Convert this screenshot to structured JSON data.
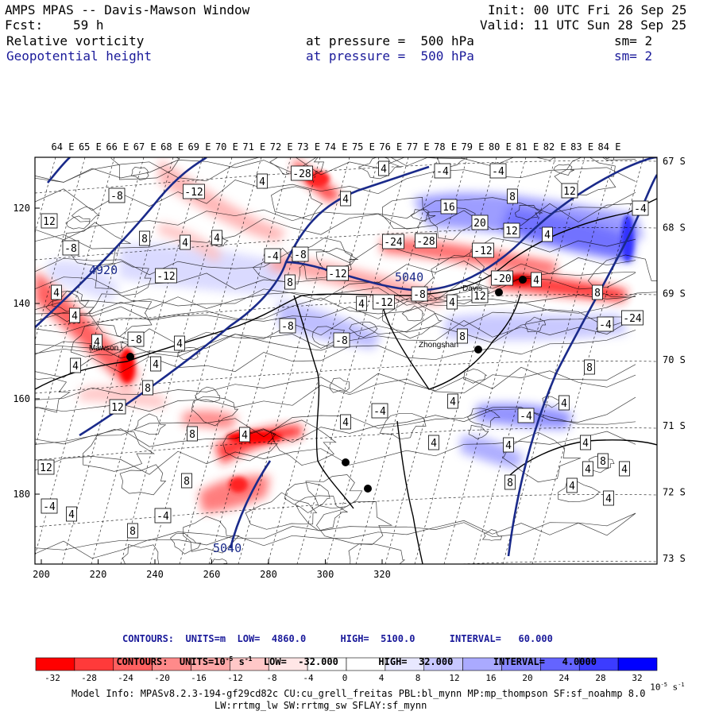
{
  "header": {
    "title": "AMPS MPAS -- Davis-Mawson Window",
    "init": "Init: 00 UTC Fri 26 Sep 25",
    "fcst_label": "Fcst:",
    "fcst_value": "59 h",
    "valid": "Valid: 11 UTC Sun 28 Sep 25",
    "field1_name": "Relative vorticity",
    "field1_level": "at pressure =  500 hPa",
    "field1_sm": "sm= 2",
    "field2_name": "Geopotential height",
    "field2_level": "at pressure =  500 hPa",
    "field2_sm": "sm= 2"
  },
  "map": {
    "top_lon_labels": [
      "64 E",
      "65 E",
      "66 E",
      "67 E",
      "68 E",
      "69 E",
      "70 E",
      "71 E",
      "72 E",
      "73 E",
      "74 E",
      "75 E",
      "76 E",
      "77 E",
      "78 E",
      "79 E",
      "80 E",
      "81 E",
      "82 E",
      "83 E",
      "84 E"
    ],
    "right_lat_labels": [
      "67 S",
      "68 S",
      "69 S",
      "70 S",
      "71 S",
      "72 S",
      "73 S"
    ],
    "x_ticks": [
      "200",
      "220",
      "240",
      "260",
      "280",
      "300",
      "320"
    ],
    "y_ticks": [
      "120",
      "140",
      "160",
      "180"
    ],
    "places": [
      {
        "name": "Mawson"
      },
      {
        "name": "Zhongshan"
      },
      {
        "name": "Davis"
      }
    ],
    "height_labels": [
      "4920",
      "5040",
      "5040"
    ],
    "vort_labels": [
      "-28",
      "4",
      "-4",
      "-4",
      "-8",
      "-12",
      "4",
      "4",
      "8",
      "12",
      "16",
      "20",
      "12",
      "4",
      "-4",
      "-8",
      "12",
      "8",
      "4",
      "4",
      "-4",
      "-8",
      "-12",
      "-24",
      "-28",
      "-12",
      "4",
      "8",
      "-4",
      "-12",
      "8",
      "4",
      "-12",
      "-8",
      "4",
      "12",
      "-20",
      "-24",
      "4",
      "4",
      "4",
      "-8",
      "4",
      "-8",
      "-8",
      "8",
      "4",
      "4",
      "8",
      "12",
      "8",
      "4",
      "4",
      "-4",
      "4",
      "-4",
      "4",
      "8",
      "4",
      "4",
      "4",
      "8",
      "4",
      "4",
      "8",
      "4",
      "4",
      "12",
      "8",
      "-4",
      "4",
      "8",
      "-4"
    ]
  },
  "footer": {
    "contours1": "CONTOURS:  UNITS=m  LOW=  4860.0      HIGH=  5100.0      INTERVAL=   60.000",
    "contours2_a": "CONTOURS:  UNITS=10",
    "contours2_exp": "-5",
    "contours2_b": " s",
    "contours2_exp2": "-1",
    "contours2_c": "  LOW=  -32.000       HIGH=  32.000       INTERVAL=   4.0000",
    "colorbar_labels": [
      "-32",
      "-28",
      "-24",
      "-20",
      "-16",
      "-12",
      "-8",
      "-4",
      "0",
      "4",
      "8",
      "12",
      "16",
      "20",
      "24",
      "28",
      "32"
    ],
    "colorbar_unit": "10",
    "colorbar_unit_exp": "-5",
    "colorbar_unit_s": " s",
    "colorbar_unit_exp2": "-1",
    "colorbar_colors": [
      "#ff0000",
      "#ff3a3a",
      "#ff6060",
      "#ff8a8a",
      "#ffa8a8",
      "#ffc8c8",
      "#ffe6e6",
      "#ffffff",
      "#ffffff",
      "#e8e8ff",
      "#c8c8ff",
      "#aaaaff",
      "#8888ff",
      "#6464ff",
      "#3c3cff",
      "#0000ff"
    ],
    "model_info_1": "Model Info: MPASv8.2.3-194-gf29cd82c CU:cu_grell_freitas PBL:bl_mynn MP:mp_thompson SF:sf_noahmp 8.0",
    "model_info_2": "LW:rrtmg_lw SW:rrtmg_sw SFLAY:sf_mynn"
  }
}
